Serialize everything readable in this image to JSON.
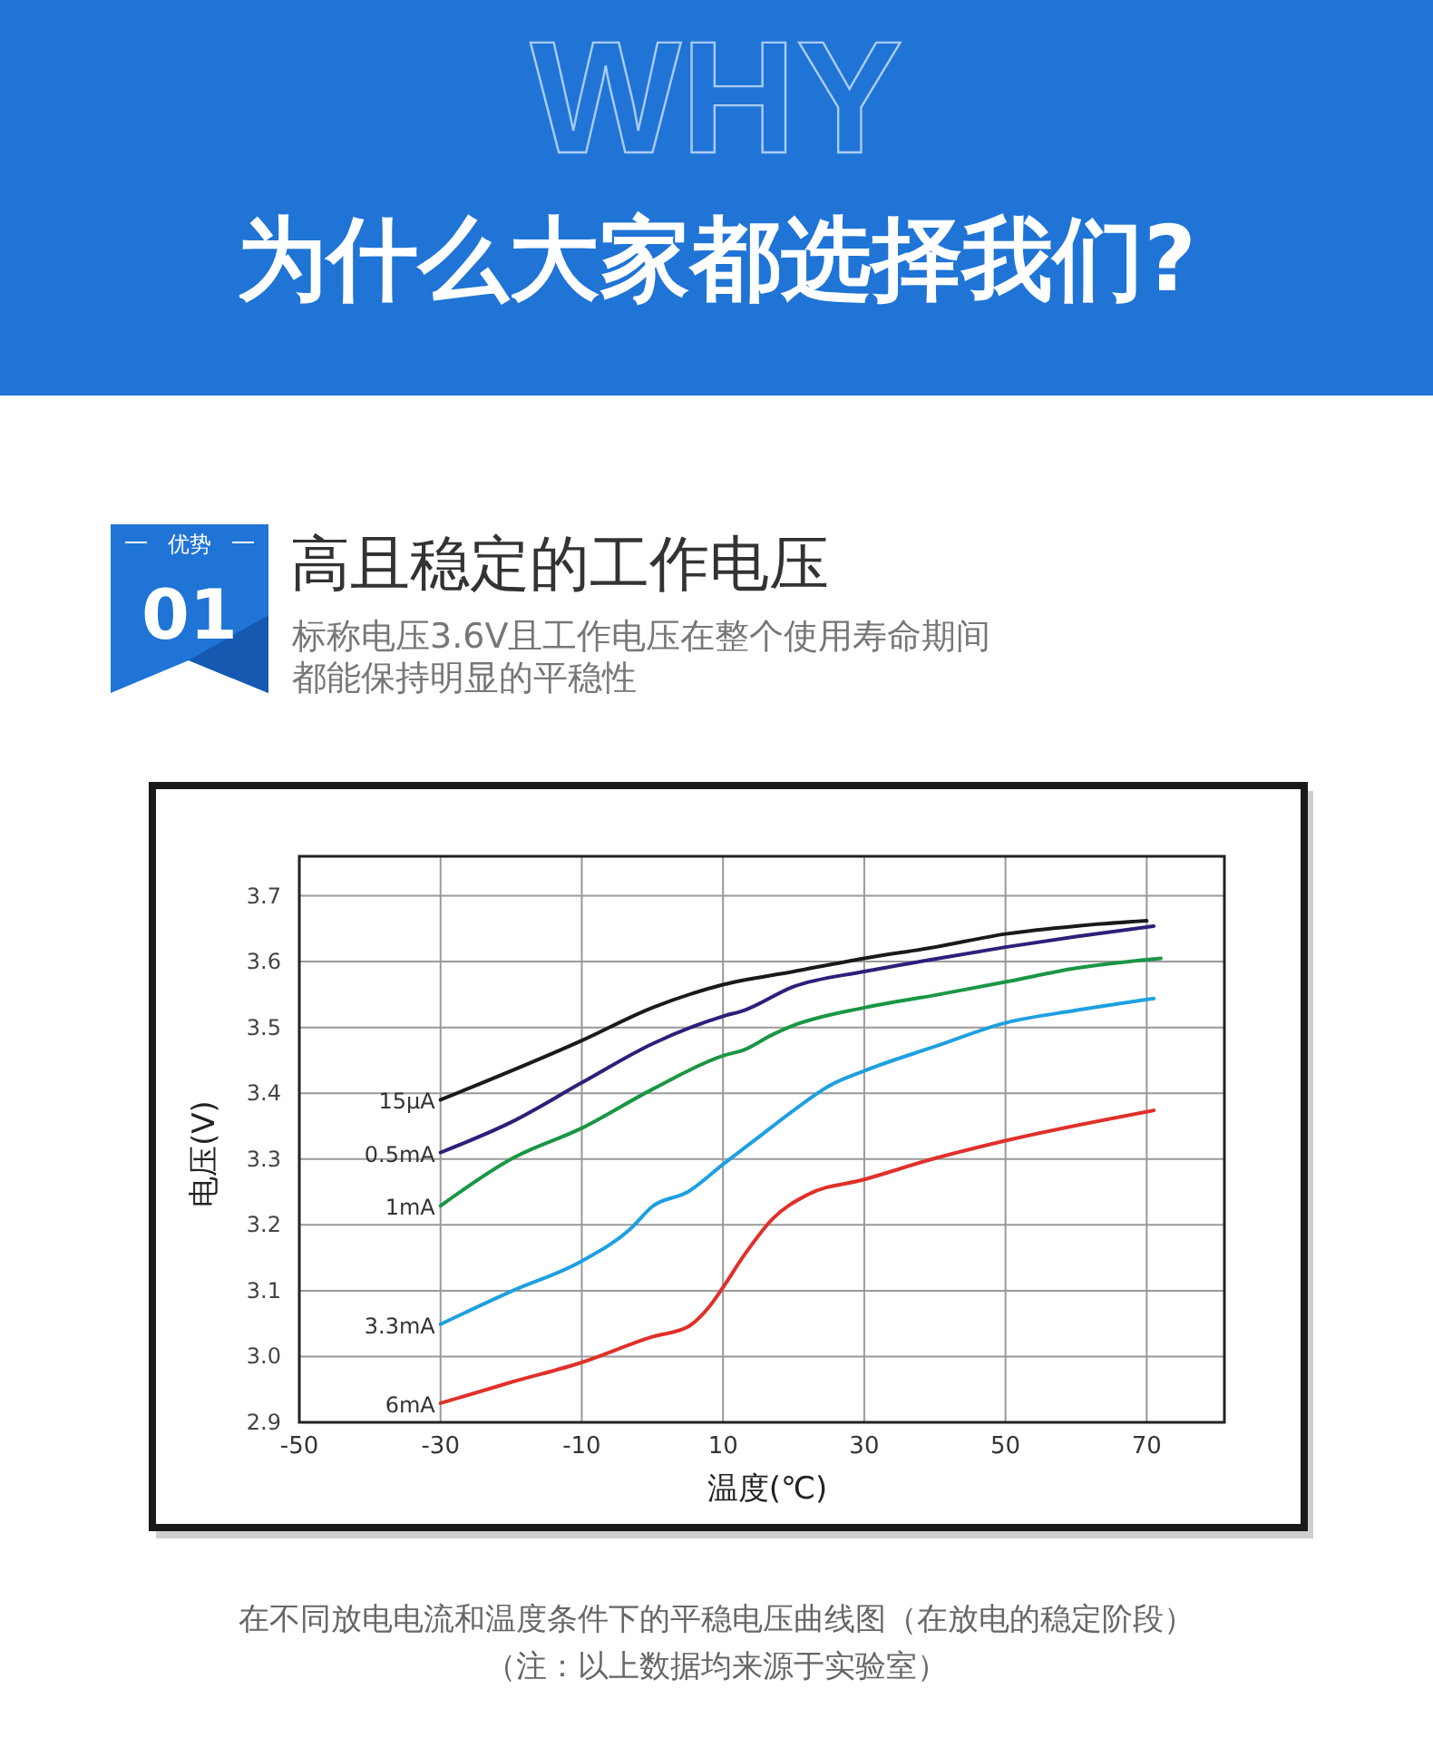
{
  "chart_data": {
    "type": "line",
    "title": "为什么大家都选择我们?",
    "subtitle": "高且稳定的工作电压",
    "xlabel": "温度(℃)",
    "ylabel": "电压(V)",
    "annotations": [
      "WHY",
      "优势",
      "01",
      "标称电压3.6V且工作电压在整个使用寿命期间",
      "都能保持明显的平稳性",
      "在不同放电电流和温度条件下的平稳电压曲线图（在放电的稳定阶段）",
      "（注：以上数据均来源于实验室）"
    ],
    "xlim": [
      -50,
      81
    ],
    "xticks": [
      -50,
      -30,
      -10,
      10,
      30,
      50,
      70
    ],
    "ylim": [
      2.9,
      3.76
    ],
    "yticks": [
      2.9,
      {
        "value": 3,
        "label": "3.0"
      },
      3.1,
      3.2,
      3.3,
      3.4,
      3.5,
      3.6,
      3.7
    ],
    "grid": true,
    "legend": false,
    "marker": "none",
    "line_style": "solid",
    "series": [
      {
        "name": "15μA",
        "color": "#1a1a1a",
        "x": [
          -30,
          -10,
          0,
          10,
          20,
          30,
          40,
          50,
          60,
          70
        ],
        "values": [
          3.39,
          3.48,
          3.53,
          3.565,
          3.585,
          3.605,
          3.622,
          3.642,
          3.654,
          3.662
        ]
      },
      {
        "name": "0.5mA",
        "color": "#2e1f7a",
        "x": [
          -30,
          -20,
          -10,
          0,
          10,
          13,
          20,
          30,
          40,
          50,
          60,
          71
        ],
        "values": [
          3.31,
          3.356,
          3.416,
          3.475,
          3.517,
          3.526,
          3.562,
          3.585,
          3.604,
          3.622,
          3.638,
          3.654
        ]
      },
      {
        "name": "1mA",
        "color": "#1a9645",
        "x": [
          -30,
          -20,
          -10,
          0,
          10,
          13,
          17,
          20,
          30,
          40,
          50,
          60,
          72
        ],
        "values": [
          3.229,
          3.3,
          3.347,
          3.406,
          3.457,
          3.466,
          3.489,
          3.503,
          3.53,
          3.549,
          3.569,
          3.59,
          3.605
        ]
      },
      {
        "name": "3.3mA",
        "color": "#1ea0e0",
        "x": [
          -30,
          -20,
          -10,
          -3,
          0,
          5,
          10,
          15,
          20,
          25,
          30,
          40,
          50,
          60,
          71
        ],
        "values": [
          3.049,
          3.099,
          3.145,
          3.195,
          3.228,
          3.25,
          3.292,
          3.333,
          3.374,
          3.411,
          3.434,
          3.471,
          3.507,
          3.526,
          3.544
        ]
      },
      {
        "name": "6mA",
        "color": "#e0302a",
        "x": [
          -30,
          -20,
          -10,
          0,
          5,
          8,
          10,
          13,
          17,
          22,
          30,
          40,
          50,
          71
        ],
        "values": [
          2.929,
          2.961,
          2.991,
          3.03,
          3.045,
          3.075,
          3.105,
          3.154,
          3.209,
          3.246,
          3.269,
          3.301,
          3.328,
          3.374
        ]
      }
    ]
  }
}
